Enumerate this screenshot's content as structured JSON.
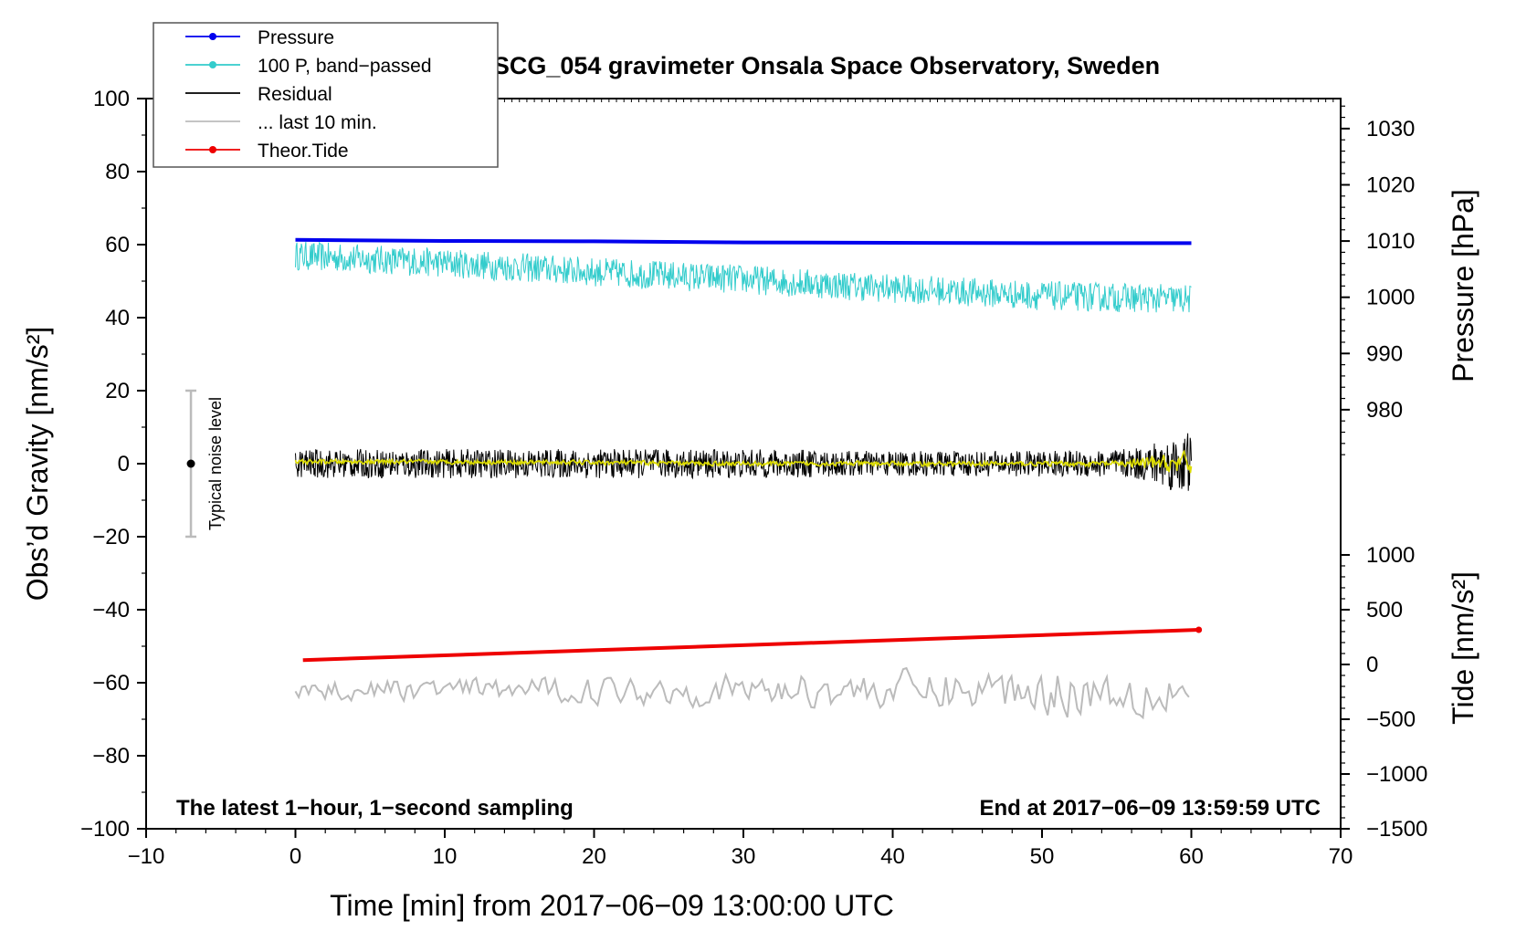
{
  "chart_data": {
    "type": "line",
    "title": "SCG_054 gravimeter Onsala Space Observatory, Sweden",
    "xlabel": "Time [min] from 2017−06−09 13:00:00 UTC",
    "ylabel_left": "Obs’d Gravity [nm/s²]",
    "ylabel_right_top": "Pressure [hPa]",
    "ylabel_right_bottom": "Tide [nm/s²]",
    "xlim": [
      -10,
      70
    ],
    "ylim_left": [
      -100,
      100
    ],
    "x_ticks": [
      -10,
      0,
      10,
      20,
      30,
      40,
      50,
      60,
      70
    ],
    "x_tick_labels": [
      "−10",
      "0",
      "10",
      "20",
      "30",
      "40",
      "50",
      "60",
      "70"
    ],
    "y_ticks_left": [
      100,
      80,
      60,
      40,
      20,
      0,
      -20,
      -40,
      -60,
      -80,
      -100
    ],
    "y_tick_labels_left": [
      "100",
      "80",
      "60",
      "40",
      "20",
      "0",
      "−20",
      "−40",
      "−60",
      "−80",
      "−100"
    ],
    "pressure_axis": {
      "ticks": [
        980,
        990,
        1000,
        1010,
        1020,
        1030
      ],
      "tick_labels": [
        "980",
        "990",
        "1000",
        "1010",
        "1020",
        "1030"
      ],
      "hpa_per_grav_unit": 0.6494,
      "hpa_at_grav_zero": 970.4
    },
    "tide_axis": {
      "ticks": [
        1000,
        500,
        0,
        -500,
        -1000,
        -1500
      ],
      "tick_labels": [
        "1000",
        "500",
        "0",
        "−500",
        "−1000",
        "−1500"
      ],
      "nms2_per_grav_unit": 33.33,
      "nms2_at_grav_zero": 1833
    },
    "legend": [
      {
        "label": "Pressure",
        "color": "#0000ee",
        "marker": true
      },
      {
        "label": "100 P, band−passed",
        "color": "#33cccc",
        "marker": true
      },
      {
        "label": "Residual",
        "color": "#000000",
        "marker": false
      },
      {
        "label": "... last 10 min.",
        "color": "#bbbbbb",
        "marker": false
      },
      {
        "label": "Theor.Tide",
        "color": "#ee0000",
        "marker": true
      }
    ],
    "series": [
      {
        "name": "Pressure",
        "color": "#0000ee",
        "x": [
          0,
          10,
          20,
          30,
          40,
          50,
          60
        ],
        "y": [
          61.3,
          61.0,
          60.9,
          60.6,
          60.5,
          60.4,
          60.4
        ]
      },
      {
        "name": "100 P, band−passed",
        "color": "#33cccc",
        "x": [
          0,
          10,
          20,
          30,
          40,
          50,
          60
        ],
        "y": [
          57,
          55,
          52.5,
          50.5,
          48,
          46,
          45
        ],
        "noise_amplitude": 4
      },
      {
        "name": "Residual",
        "color": "#000000",
        "x": [
          0,
          10,
          20,
          30,
          40,
          50,
          56,
          60
        ],
        "y": [
          0,
          0,
          0,
          0,
          0,
          0,
          0,
          0
        ],
        "noise_amplitude": [
          4,
          4,
          4,
          4,
          3.5,
          3.5,
          4,
          9
        ]
      },
      {
        "name": "Residual smoothed",
        "color": "#dddd00",
        "x": [
          0,
          10,
          20,
          30,
          40,
          50,
          55,
          60
        ],
        "y": [
          0.5,
          0.5,
          0.3,
          0,
          0,
          0,
          0,
          0
        ],
        "noise_amplitude": [
          0.8,
          0.8,
          0.8,
          0.8,
          0.8,
          0.8,
          1,
          4
        ]
      },
      {
        "name": "... last 10 min.",
        "color": "#bbbbbb",
        "x": [
          0,
          10,
          20,
          30,
          40,
          50,
          60
        ],
        "y": [
          -62,
          -62,
          -62,
          -62,
          -62,
          -62,
          -62
        ],
        "noise_amplitude": [
          4,
          4,
          5,
          6,
          7,
          9,
          10
        ]
      },
      {
        "name": "Theor.Tide",
        "color": "#ee0000",
        "x": [
          0.5,
          60.5
        ],
        "y": [
          -53.8,
          -45.5
        ]
      }
    ],
    "noise_bar": {
      "x": -7,
      "y_center": 0,
      "y_low": -20,
      "y_high": 20,
      "label": "Typical noise level"
    },
    "annotations": {
      "bottom_left": "The latest 1−hour, 1−second sampling",
      "bottom_right": "End at 2017−06−09 13:59:59 UTC"
    }
  }
}
